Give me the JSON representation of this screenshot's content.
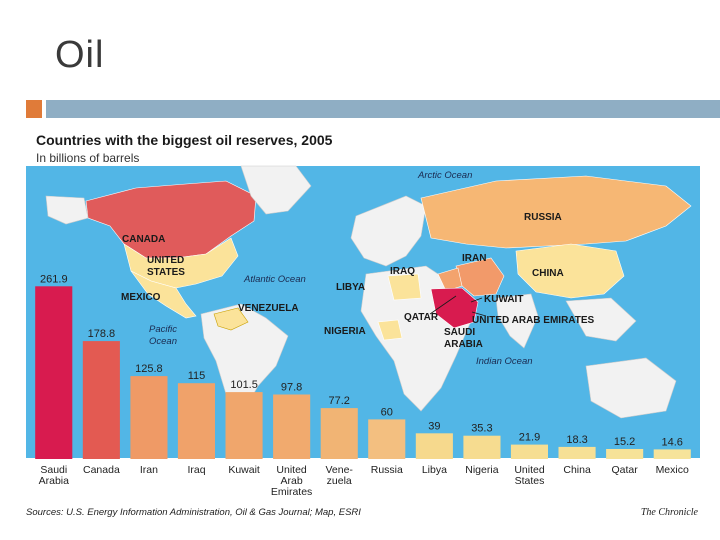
{
  "slide": {
    "title": "Oil"
  },
  "colors": {
    "accent": "#e07b39",
    "rule": "#8faec4"
  },
  "figure": {
    "title": "Countries with the biggest oil reserves, 2005",
    "subtitle": "In billions of barrels",
    "source": "Sources: U.S. Energy Information Administration, Oil & Gas Journal; Map, ESRI",
    "brand": "The Chronicle",
    "map_labels": {
      "canada": "CANADA",
      "united_states": [
        "UNITED",
        "STATES"
      ],
      "mexico": "MEXICO",
      "venezuela": "VENEZUELA",
      "libya": "LIBYA",
      "nigeria": "NIGERIA",
      "iraq": "IRAQ",
      "iran": "IRAN",
      "kuwait": "KUWAIT",
      "qatar": "QATAR",
      "uae": "UNITED ARAB EMIRATES",
      "saudi_arabia": [
        "SAUDI",
        "ARABIA"
      ],
      "russia": "RUSSIA",
      "china": "CHINA"
    },
    "ocean_labels": {
      "arctic": "Arctic Ocean",
      "atlantic": "Atlantic Ocean",
      "pacific": [
        "Pacific",
        "Ocean"
      ],
      "indian": "Indian Ocean"
    }
  },
  "chart_data": {
    "type": "bar",
    "title": "Countries with the biggest oil reserves, 2005",
    "subtitle": "In billions of barrels",
    "categories": [
      [
        "Saudi",
        "Arabia"
      ],
      [
        "Canada"
      ],
      [
        "Iran"
      ],
      [
        "Iraq"
      ],
      [
        "Kuwait"
      ],
      [
        "United",
        "Arab",
        "Emirates"
      ],
      [
        "Vene-",
        "zuela"
      ],
      [
        "Russia"
      ],
      [
        "Libya"
      ],
      [
        "Nigeria"
      ],
      [
        "United",
        "States"
      ],
      [
        "China"
      ],
      [
        "Qatar"
      ],
      [
        "Mexico"
      ]
    ],
    "values": [
      261.9,
      178.8,
      125.8,
      115,
      101.5,
      97.8,
      77.2,
      60,
      39,
      35.3,
      21.9,
      18.3,
      15.2,
      14.6
    ],
    "value_labels": [
      "261.9",
      "178.8",
      "125.8",
      "115",
      "101.5",
      "97.8",
      "77.2",
      "60",
      "39",
      "35.3",
      "21.9",
      "18.3",
      "15.2",
      "14.6"
    ],
    "colors": [
      "#d81b4f",
      "#e35a52",
      "#ef9a66",
      "#f0a26a",
      "#f0a66c",
      "#f1aa6e",
      "#f1b474",
      "#f3bf80",
      "#f6d98d",
      "#f6dc90",
      "#f6de92",
      "#f6e096",
      "#f6e298",
      "#f6e39a"
    ],
    "ylim": [
      0,
      270
    ],
    "xlabel": "",
    "ylabel": ""
  }
}
